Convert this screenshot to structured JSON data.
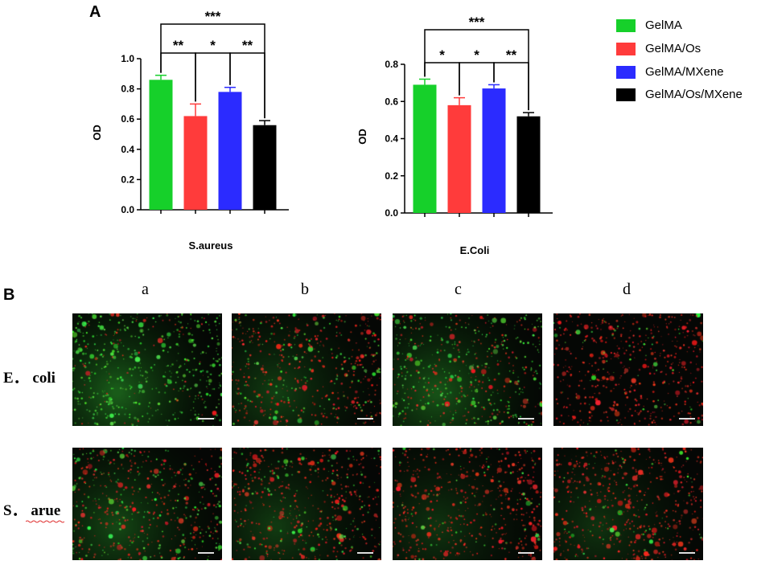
{
  "panels": {
    "a_letter": "A",
    "b_letter": "B"
  },
  "legend": [
    {
      "label": "GelMA",
      "color": "#16d02a"
    },
    {
      "label": "GelMA/Os",
      "color": "#ff3b3b"
    },
    {
      "label": "GelMA/MXene",
      "color": "#2b2bff"
    },
    {
      "label": "GelMA/Os/MXene",
      "color": "#000000"
    }
  ],
  "chart_data": [
    {
      "type": "bar",
      "xlabel": "S.aureus",
      "ylabel": "OD",
      "ylim": [
        0,
        1.0
      ],
      "yticks": [
        "0.0",
        "0.2",
        "0.4",
        "0.6",
        "0.8",
        "1.0"
      ],
      "categories": [
        "GelMA",
        "GelMA/Os",
        "GelMA/MXene",
        "GelMA/Os/MXene"
      ],
      "values": [
        0.86,
        0.62,
        0.78,
        0.56
      ],
      "errors": [
        0.03,
        0.08,
        0.03,
        0.03
      ],
      "colors": [
        "#16d02a",
        "#ff3b3b",
        "#2b2bff",
        "#000000"
      ],
      "significance": [
        {
          "pair": [
            0,
            1
          ],
          "label": "**",
          "level": 1
        },
        {
          "pair": [
            1,
            2
          ],
          "label": "*",
          "level": 1
        },
        {
          "pair": [
            2,
            3
          ],
          "label": "**",
          "level": 1
        },
        {
          "pair": [
            0,
            3
          ],
          "label": "***",
          "level": 2
        }
      ]
    },
    {
      "type": "bar",
      "xlabel": "E.Coli",
      "ylabel": "OD",
      "ylim": [
        0,
        0.8
      ],
      "yticks": [
        "0.0",
        "0.2",
        "0.4",
        "0.6",
        "0.8"
      ],
      "categories": [
        "GelMA",
        "GelMA/Os",
        "GelMA/MXene",
        "GelMA/Os/MXene"
      ],
      "values": [
        0.69,
        0.58,
        0.67,
        0.52
      ],
      "errors": [
        0.03,
        0.04,
        0.02,
        0.02
      ],
      "colors": [
        "#16d02a",
        "#ff3b3b",
        "#2b2bff",
        "#000000"
      ],
      "significance": [
        {
          "pair": [
            0,
            1
          ],
          "label": "*",
          "level": 1
        },
        {
          "pair": [
            1,
            2
          ],
          "label": "*",
          "level": 1
        },
        {
          "pair": [
            2,
            3
          ],
          "label": "**",
          "level": 1
        },
        {
          "pair": [
            0,
            3
          ],
          "label": "***",
          "level": 2
        }
      ]
    }
  ],
  "micrographs": {
    "columns": [
      "a",
      "b",
      "c",
      "d"
    ],
    "rows": [
      {
        "label": "E． coli",
        "images": [
          {
            "green": 0.85,
            "red": 0.15,
            "glow": true
          },
          {
            "green": 0.3,
            "red": 0.7,
            "glow": true
          },
          {
            "green": 0.65,
            "red": 0.35,
            "glow": true
          },
          {
            "green": 0.1,
            "red": 0.9,
            "glow": false
          }
        ]
      },
      {
        "label": "S． arue",
        "images": [
          {
            "green": 0.45,
            "red": 0.55,
            "glow": true
          },
          {
            "green": 0.25,
            "red": 0.75,
            "glow": true
          },
          {
            "green": 0.12,
            "red": 0.88,
            "glow": true
          },
          {
            "green": 0.1,
            "red": 0.9,
            "glow": true
          }
        ]
      }
    ]
  }
}
